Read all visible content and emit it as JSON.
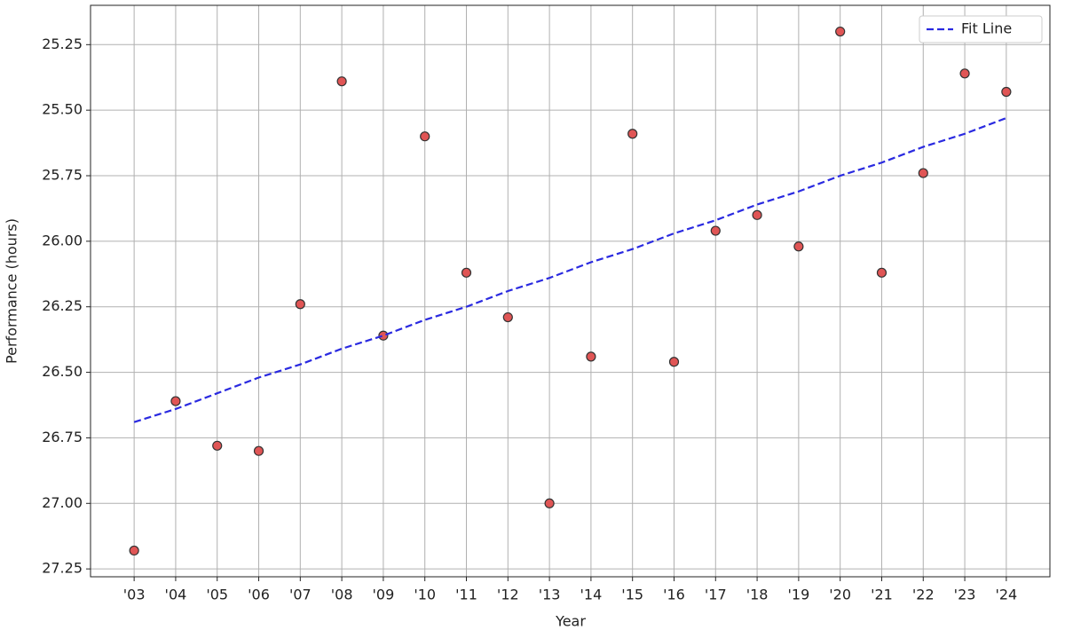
{
  "chart_data": {
    "type": "scatter",
    "x_label": "Year",
    "y_label": "Performance (hours)",
    "categories": [
      "'03",
      "'04",
      "'05",
      "'06",
      "'07",
      "'08",
      "'09",
      "'10",
      "'11",
      "'12",
      "'13",
      "'14",
      "'15",
      "'16",
      "'17",
      "'18",
      "'19",
      "'20",
      "'21",
      "'22",
      "'23",
      "'24"
    ],
    "series": [
      {
        "color": "#e05555",
        "edgecolor": "#333333",
        "values": [
          27.18,
          26.61,
          26.78,
          26.8,
          26.24,
          25.39,
          26.36,
          25.6,
          26.12,
          26.29,
          27.0,
          26.44,
          25.59,
          26.46,
          25.96,
          25.9,
          26.02,
          25.2,
          26.12,
          25.74,
          25.36,
          25.43
        ]
      },
      {
        "name": "Fit Line",
        "color": "#2a2ae0",
        "style": "dashed",
        "values": [
          26.69,
          26.64,
          26.58,
          26.52,
          26.47,
          26.41,
          26.36,
          26.3,
          26.25,
          26.19,
          26.14,
          26.08,
          26.03,
          25.97,
          25.92,
          25.86,
          25.81,
          25.75,
          25.7,
          25.64,
          25.59,
          25.53
        ]
      }
    ],
    "ylim": [
      27.28,
      25.1
    ],
    "yticks": [
      {
        "value": 25.25,
        "label": "25.25"
      },
      {
        "value": 25.5,
        "label": "25.50"
      },
      {
        "value": 25.75,
        "label": "25.75"
      },
      {
        "value": 26,
        "label": "26.00"
      },
      {
        "value": 26.25,
        "label": "26.25"
      },
      {
        "value": 26.5,
        "label": "26.50"
      },
      26.75,
      {
        "value": 27,
        "label": "27.00"
      },
      27.25
    ],
    "grid": true,
    "legend": "upper right"
  }
}
